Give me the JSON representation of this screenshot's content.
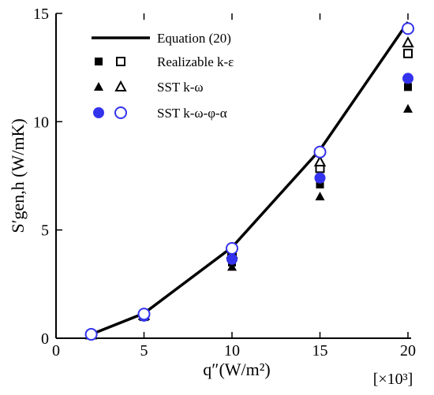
{
  "chart_data": {
    "type": "line",
    "xlabel": "q″(W/m²)",
    "ylabel": "S′gen,h (W/mK)",
    "x_multiplier": "[×10³]",
    "xlim": [
      0,
      20
    ],
    "ylim": [
      0,
      15
    ],
    "x_ticks": [
      0,
      5,
      10,
      15,
      20
    ],
    "y_ticks": [
      0,
      5,
      10,
      15
    ],
    "grid": false,
    "legend_position": "top-left",
    "series": [
      {
        "name": "Equation (20)",
        "kind": "line",
        "color": "#000000",
        "x": [
          2,
          5,
          10,
          15,
          20
        ],
        "y": [
          0.18,
          1.15,
          4.2,
          8.7,
          14.6
        ]
      },
      {
        "name": "Realizable k-ε",
        "kind": "square",
        "color": "#000000",
        "filled": {
          "x": [
            2,
            5,
            10,
            15,
            20
          ],
          "y": [
            0.15,
            1.0,
            3.5,
            7.1,
            11.6
          ]
        },
        "open": {
          "x": [
            2,
            5,
            10,
            15,
            20
          ],
          "y": [
            0.17,
            1.05,
            3.8,
            7.85,
            13.15
          ]
        }
      },
      {
        "name": "SST k-ω",
        "kind": "triangle",
        "color": "#000000",
        "filled": {
          "x": [
            2,
            5,
            10,
            15,
            20
          ],
          "y": [
            0.14,
            0.98,
            3.3,
            6.55,
            10.6
          ]
        },
        "open": {
          "x": [
            2,
            5,
            10,
            15,
            20
          ],
          "y": [
            0.17,
            1.06,
            3.9,
            8.15,
            13.65
          ]
        }
      },
      {
        "name": "SST k-ω-φ-α",
        "kind": "circle",
        "color": "#3333ee",
        "filled": {
          "x": [
            2,
            5,
            10,
            15,
            20
          ],
          "y": [
            0.16,
            1.02,
            3.65,
            7.4,
            12.0
          ]
        },
        "open": {
          "x": [
            2,
            5,
            10,
            15,
            20
          ],
          "y": [
            0.18,
            1.12,
            4.15,
            8.6,
            14.3
          ]
        }
      }
    ]
  }
}
